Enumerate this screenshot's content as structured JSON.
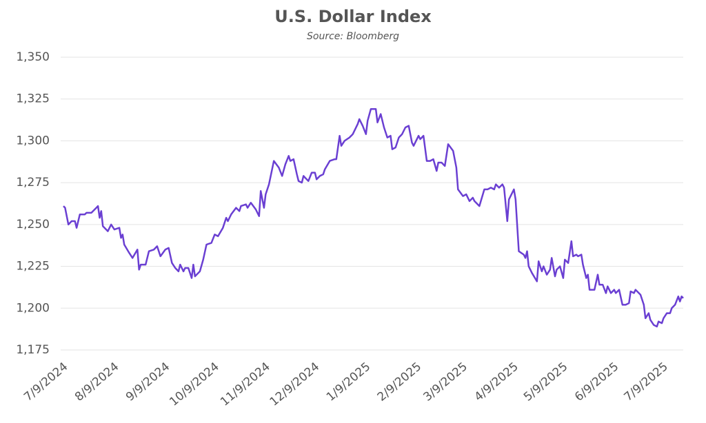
{
  "chart_data": {
    "type": "line",
    "title": "U.S. Dollar Index",
    "subtitle": "Source: Bloomberg",
    "x": [
      "7/9/2024",
      "7/10/2024",
      "7/12/2024",
      "7/14/2024",
      "7/16/2024",
      "7/17/2024",
      "7/19/2024",
      "7/22/2024",
      "7/23/2024",
      "7/26/2024",
      "7/29/2024",
      "7/30/2024",
      "7/31/2024",
      "8/1/2024",
      "8/2/2024",
      "8/5/2024",
      "8/7/2024",
      "8/9/2024",
      "8/12/2024",
      "8/13/2024",
      "8/14/2024",
      "8/15/2024",
      "8/18/2024",
      "8/20/2024",
      "8/23/2024",
      "8/24/2024",
      "8/25/2024",
      "8/28/2024",
      "8/30/2024",
      "9/2/2024",
      "9/4/2024",
      "9/6/2024",
      "9/9/2024",
      "9/11/2024",
      "9/13/2024",
      "9/15/2024",
      "9/17/2024",
      "9/18/2024",
      "9/20/2024",
      "9/21/2024",
      "9/23/2024",
      "9/25/2024",
      "9/26/2024",
      "9/27/2024",
      "9/30/2024",
      "10/2/2024",
      "10/4/2024",
      "10/7/2024",
      "10/9/2024",
      "10/11/2024",
      "10/14/2024",
      "10/16/2024",
      "10/17/2024",
      "10/19/2024",
      "10/22/2024",
      "10/24/2024",
      "10/25/2024",
      "10/28/2024",
      "10/29/2024",
      "10/31/2024",
      "11/3/2024",
      "11/5/2024",
      "11/6/2024",
      "11/8/2024",
      "11/9/2024",
      "11/11/2024",
      "11/14/2024",
      "11/17/2024",
      "11/19/2024",
      "11/21/2024",
      "11/23/2024",
      "11/24/2024",
      "11/26/2024",
      "11/28/2024",
      "11/29/2024",
      "12/1/2024",
      "12/2/2024",
      "12/3/2024",
      "12/5/2024",
      "12/7/2024",
      "12/9/2024",
      "12/10/2024",
      "12/12/2024",
      "12/14/2024",
      "12/15/2024",
      "12/18/2024",
      "12/21/2024",
      "12/22/2024",
      "12/24/2024",
      "12/25/2024",
      "12/27/2024",
      "12/30/2024",
      "1/1/2025",
      "1/4/2025",
      "1/5/2025",
      "1/7/2025",
      "1/9/2025",
      "1/10/2025",
      "1/12/2025",
      "1/15/2025",
      "1/16/2025",
      "1/18/2025",
      "1/20/2025",
      "1/22/2025",
      "1/24/2025",
      "1/25/2025",
      "1/27/2025",
      "1/29/2025",
      "1/31/2025",
      "2/2/2025",
      "2/4/2025",
      "2/6/2025",
      "2/7/2025",
      "2/10/2025",
      "2/11/2025",
      "2/13/2025",
      "2/15/2025",
      "2/17/2025",
      "2/19/2025",
      "2/21/2025",
      "2/22/2025",
      "2/24/2025",
      "2/26/2025",
      "2/28/2025",
      "3/3/2025",
      "3/5/2025",
      "3/6/2025",
      "3/9/2025",
      "3/11/2025",
      "3/13/2025",
      "3/15/2025",
      "3/16/2025",
      "3/19/2025",
      "3/22/2025",
      "3/24/2025",
      "3/26/2025",
      "3/28/2025",
      "3/29/2025",
      "3/31/2025",
      "4/2/2025",
      "4/3/2025",
      "4/5/2025",
      "4/6/2025",
      "4/9/2025",
      "4/10/2025",
      "4/12/2025",
      "4/15/2025",
      "4/16/2025",
      "4/17/2025",
      "4/18/2025",
      "4/20/2025",
      "4/23/2025",
      "4/24/2025",
      "4/26/2025",
      "4/27/2025",
      "4/29/2025",
      "5/1/2025",
      "5/2/2025",
      "5/4/2025",
      "5/5/2025",
      "5/7/2025",
      "5/9/2025",
      "5/10/2025",
      "5/12/2025",
      "5/14/2025",
      "5/15/2025",
      "5/17/2025",
      "5/18/2025",
      "5/20/2025",
      "5/21/2025",
      "5/23/2025",
      "5/24/2025",
      "5/25/2025",
      "5/28/2025",
      "5/30/2025",
      "5/31/2025",
      "6/2/2025",
      "6/4/2025",
      "6/5/2025",
      "6/7/2025",
      "6/9/2025",
      "6/10/2025",
      "6/12/2025",
      "6/14/2025",
      "6/16/2025",
      "6/18/2025",
      "6/19/2025",
      "6/21/2025",
      "6/22/2025",
      "6/24/2025",
      "6/25/2025",
      "6/27/2025",
      "6/28/2025",
      "6/30/2025",
      "7/1/2025",
      "7/3/2025",
      "7/5/2025",
      "7/6/2025",
      "7/8/2025",
      "7/9/2025",
      "7/11/2025",
      "7/13/2025",
      "7/14/2025",
      "7/16/2025",
      "7/18/2025",
      "7/19/2025",
      "7/20/2025",
      "7/21/2025"
    ],
    "series": [
      {
        "name": "U.S. Dollar Index",
        "color": "#6a3fd2",
        "values": [
          1261,
          1260,
          1250,
          1252,
          1252,
          1248,
          1256,
          1256,
          1257,
          1257,
          1260,
          1261,
          1254,
          1258,
          1249,
          1246,
          1250,
          1247,
          1248,
          1242,
          1244,
          1238,
          1233,
          1230,
          1235,
          1223,
          1226,
          1226,
          1234,
          1235,
          1237,
          1231,
          1235,
          1236,
          1227,
          1224,
          1222,
          1226,
          1222,
          1224,
          1224,
          1218,
          1226,
          1219,
          1222,
          1229,
          1238,
          1239,
          1244,
          1243,
          1248,
          1254,
          1252,
          1256,
          1260,
          1258,
          1261,
          1262,
          1260,
          1263,
          1259,
          1255,
          1270,
          1260,
          1268,
          1274,
          1288,
          1284,
          1279,
          1286,
          1291,
          1288,
          1289,
          1280,
          1276,
          1275,
          1279,
          1278,
          1276,
          1281,
          1281,
          1277,
          1279,
          1280,
          1283,
          1288,
          1289,
          1289,
          1303,
          1297,
          1300,
          1302,
          1304,
          1310,
          1313,
          1309,
          1304,
          1312,
          1319,
          1319,
          1311,
          1316,
          1308,
          1302,
          1303,
          1295,
          1296,
          1302,
          1304,
          1308,
          1309,
          1299,
          1297,
          1303,
          1301,
          1303,
          1288,
          1288,
          1289,
          1282,
          1287,
          1287,
          1285,
          1298,
          1294,
          1284,
          1271,
          1267,
          1268,
          1264,
          1266,
          1264,
          1261,
          1271,
          1271,
          1272,
          1271,
          1274,
          1272,
          1274,
          1272,
          1252,
          1265,
          1271,
          1265,
          1234,
          1232,
          1230,
          1234,
          1225,
          1221,
          1216,
          1228,
          1222,
          1225,
          1220,
          1223,
          1230,
          1219,
          1223,
          1225,
          1218,
          1229,
          1227,
          1240,
          1231,
          1232,
          1231,
          1232,
          1226,
          1218,
          1220,
          1211,
          1211,
          1220,
          1214,
          1214,
          1209,
          1213,
          1209,
          1211,
          1209,
          1211,
          1202,
          1202,
          1203,
          1210,
          1209,
          1211,
          1209,
          1208,
          1202,
          1194,
          1197,
          1193,
          1190,
          1189,
          1192,
          1191,
          1194,
          1197,
          1197,
          1200,
          1202,
          1207,
          1204,
          1207,
          1206
        ]
      }
    ],
    "xlim": [
      "7/9/2024",
      "7/21/2025"
    ],
    "xticks": [
      "7/9/2024",
      "8/9/2024",
      "9/9/2024",
      "10/9/2024",
      "11/9/2024",
      "12/9/2024",
      "1/9/2025",
      "2/9/2025",
      "3/9/2025",
      "4/9/2025",
      "5/9/2025",
      "6/9/2025",
      "7/9/2025"
    ],
    "ylim": [
      1175,
      1350
    ],
    "yticks": [
      {
        "value": 1175,
        "label": "1,175"
      },
      {
        "value": 1200,
        "label": "1,200"
      },
      {
        "value": 1225,
        "label": "1,225"
      },
      {
        "value": 1250,
        "label": "1,250"
      },
      {
        "value": 1275,
        "label": "1,275"
      },
      {
        "value": 1300,
        "label": "1,300"
      },
      {
        "value": 1325,
        "label": "1,325"
      },
      {
        "value": 1350,
        "label": "1,350"
      }
    ],
    "grid": true
  }
}
